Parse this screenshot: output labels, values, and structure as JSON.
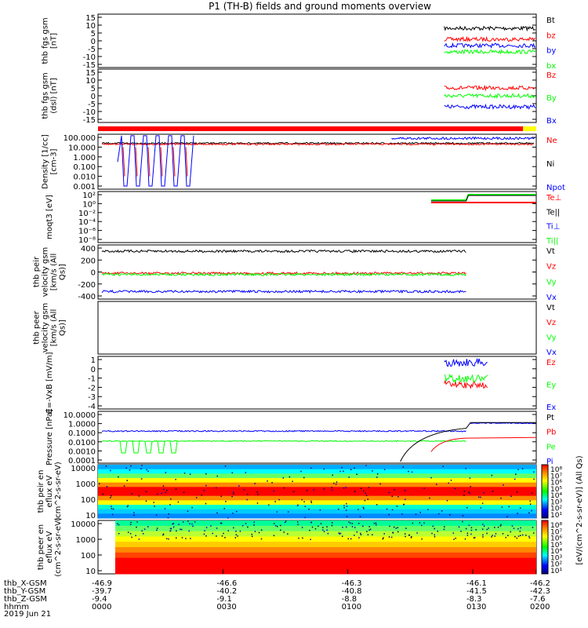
{
  "title": "P1 (TH-B) fields and ground moments overview",
  "colors": {
    "black": "#000000",
    "red": "#ff0000",
    "green": "#00ff00",
    "blue": "#0000ff",
    "yellow": "#ffff00"
  },
  "time_axis": {
    "rows": [
      {
        "label": "thb_X-GSM",
        "values": [
          "-46.9",
          "-46.6",
          "-46.3",
          "-46.1",
          "-46.2"
        ]
      },
      {
        "label": "thb_Y-GSM",
        "values": [
          "-39.7",
          "-40.2",
          "-40.8",
          "-41.5",
          "-42.3"
        ]
      },
      {
        "label": "thb_Z-GSM",
        "values": [
          "-9.4",
          "-9.1",
          "-8.8",
          "-8.3",
          "-7.6"
        ]
      },
      {
        "label": "hhmm",
        "values": [
          "0000",
          "0030",
          "0100",
          "0130",
          "0200"
        ]
      }
    ],
    "date": "2019 Jun 21"
  },
  "chart_data": [
    {
      "type": "line",
      "ylabel": "thb fgs gsm [nT]",
      "ylim": [
        -17,
        17
      ],
      "yticks": [
        "15",
        "10",
        "5",
        "0",
        "-5",
        "-10",
        "-15"
      ],
      "series": [
        {
          "name": "Bt",
          "color": "#000000",
          "level": 8
        },
        {
          "name": "bz",
          "color": "#ff0000",
          "level": 1
        },
        {
          "name": "by",
          "color": "#0000ff",
          "level": -3
        },
        {
          "name": "bx",
          "color": "#00ff00",
          "level": -7
        }
      ],
      "data_span": [
        0.79,
        1.0
      ]
    },
    {
      "type": "line",
      "ylabel": "thb fgs gsm (dsl) [nT]",
      "ylim": [
        -17,
        17
      ],
      "yticks": [
        "15",
        "10",
        "5",
        "0",
        "-5",
        "-10",
        "-15"
      ],
      "series": [
        {
          "name": "Bz",
          "color": "#ff0000",
          "level": 5
        },
        {
          "name": "By",
          "color": "#00ff00",
          "level": 0
        },
        {
          "name": "Bx",
          "color": "#0000ff",
          "level": -7
        }
      ],
      "data_span": [
        0.79,
        1.0
      ]
    },
    {
      "type": "line",
      "ylabel": "Density [1/cc] [cm-3]",
      "scale": "log",
      "yticks": [
        "100.000",
        "10.000",
        "1.000",
        "0.100",
        "0.010",
        "0.001"
      ],
      "series": [
        {
          "name": "Ne",
          "color": "#ff0000"
        },
        {
          "name": "Ni",
          "color": "#000000"
        },
        {
          "name": "Npot",
          "color": "#0000ff"
        }
      ]
    },
    {
      "type": "line",
      "ylabel": "moqt3 [eV]",
      "scale": "log",
      "yticks": [
        "10²",
        "10⁰",
        "10⁻²",
        "10⁻⁴",
        "10⁻⁶",
        "10⁻⁸"
      ],
      "series": [
        {
          "name": "Te⊥",
          "color": "#ff0000"
        },
        {
          "name": "Te||",
          "color": "#000000"
        },
        {
          "name": "Ti⊥",
          "color": "#0000ff"
        },
        {
          "name": "Ti||",
          "color": "#00ff00"
        }
      ]
    },
    {
      "type": "line",
      "ylabel": "thb peir velocity gsm [km/s (All Qs)]",
      "ylim": [
        -440,
        420
      ],
      "yticks": [
        "400",
        "200",
        "0",
        "-200",
        "-400"
      ],
      "series": [
        {
          "name": "Vt",
          "color": "#000000",
          "level": 320
        },
        {
          "name": "Vz",
          "color": "#ff0000",
          "level": -30
        },
        {
          "name": "Vy",
          "color": "#00ff00",
          "level": -50
        },
        {
          "name": "Vx",
          "color": "#0000ff",
          "level": -320
        }
      ]
    },
    {
      "type": "line",
      "ylabel": "thb peer velocity gsm [km/s (All Qs)]",
      "yticks": [],
      "series": [
        {
          "name": "Vt",
          "color": "#000000"
        },
        {
          "name": "Vz",
          "color": "#ff0000"
        },
        {
          "name": "Vy",
          "color": "#00ff00"
        },
        {
          "name": "Vx",
          "color": "#0000ff"
        }
      ]
    },
    {
      "type": "line",
      "ylabel": "E=-VxB [mV/m]",
      "ylim": [
        -4,
        1.2
      ],
      "yticks": [
        "1",
        "0",
        "-1",
        "-2",
        "-3",
        "-4"
      ],
      "series": [
        {
          "name": "Ez",
          "color": "#ff0000",
          "level": -1.6
        },
        {
          "name": "Ey",
          "color": "#00ff00",
          "level": -1.0
        },
        {
          "name": "Ex",
          "color": "#0000ff",
          "level": 0.6
        }
      ],
      "data_span": [
        0.79,
        0.89
      ]
    },
    {
      "type": "line",
      "ylabel": "Pressure [nPa]",
      "scale": "log",
      "yticks": [
        "10.0000",
        "1.0000",
        "0.1000",
        "0.0100",
        "0.0010",
        "0.0001"
      ],
      "series": [
        {
          "name": "Pt",
          "color": "#000000"
        },
        {
          "name": "Pb",
          "color": "#ff0000"
        },
        {
          "name": "Pe",
          "color": "#00ff00"
        },
        {
          "name": "Pi",
          "color": "#0000ff"
        }
      ]
    },
    {
      "type": "heatmap",
      "ylabel": "thb peir en eflux eV (cm^2-s-sr-eV)",
      "yticks": [
        "10000",
        "1000",
        "100",
        "10"
      ]
    },
    {
      "type": "heatmap",
      "ylabel": "thb peer en eflux eV (cm^2-s-sr-eV)",
      "yticks": [
        "10000",
        "1000",
        "100",
        "10"
      ]
    }
  ],
  "colorbar": {
    "ticks": [
      "10⁸",
      "10⁷",
      "10⁶",
      "10⁵",
      "10⁴",
      "10³",
      "10²",
      "10¹"
    ],
    "label": "[eV/(cm^2-s-sr-eV)] (All Qs)"
  }
}
